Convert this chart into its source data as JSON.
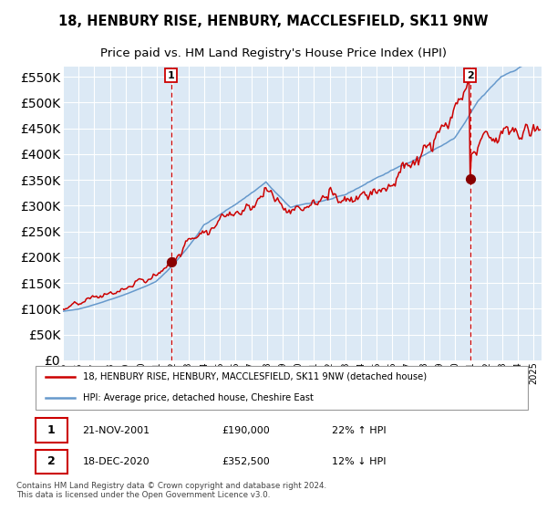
{
  "title": "18, HENBURY RISE, HENBURY, MACCLESFIELD, SK11 9NW",
  "subtitle": "Price paid vs. HM Land Registry's House Price Index (HPI)",
  "legend_line1": "18, HENBURY RISE, HENBURY, MACCLESFIELD, SK11 9NW (detached house)",
  "legend_line2": "HPI: Average price, detached house, Cheshire East",
  "annotation1_date": "21-NOV-2001",
  "annotation1_price": "£190,000",
  "annotation1_hpi": "22% ↑ HPI",
  "annotation2_date": "18-DEC-2020",
  "annotation2_price": "£352,500",
  "annotation2_hpi": "12% ↓ HPI",
  "footnote": "Contains HM Land Registry data © Crown copyright and database right 2024.\nThis data is licensed under the Open Government Licence v3.0.",
  "sale1_year": 2001.9,
  "sale1_value": 190000,
  "sale2_year": 2020.95,
  "sale2_value": 352500,
  "ylim_min": 0,
  "ylim_max": 570000,
  "xlim_min": 1995,
  "xlim_max": 2025.5,
  "plot_bg_color": "#dce9f5",
  "grid_color": "#ffffff",
  "red_line_color": "#cc0000",
  "blue_line_color": "#6699cc",
  "dashed_vline_color": "#cc0000",
  "dot_color": "#880000",
  "box_edge_color": "#cc0000",
  "title_fontsize": 10.5,
  "subtitle_fontsize": 9.5
}
